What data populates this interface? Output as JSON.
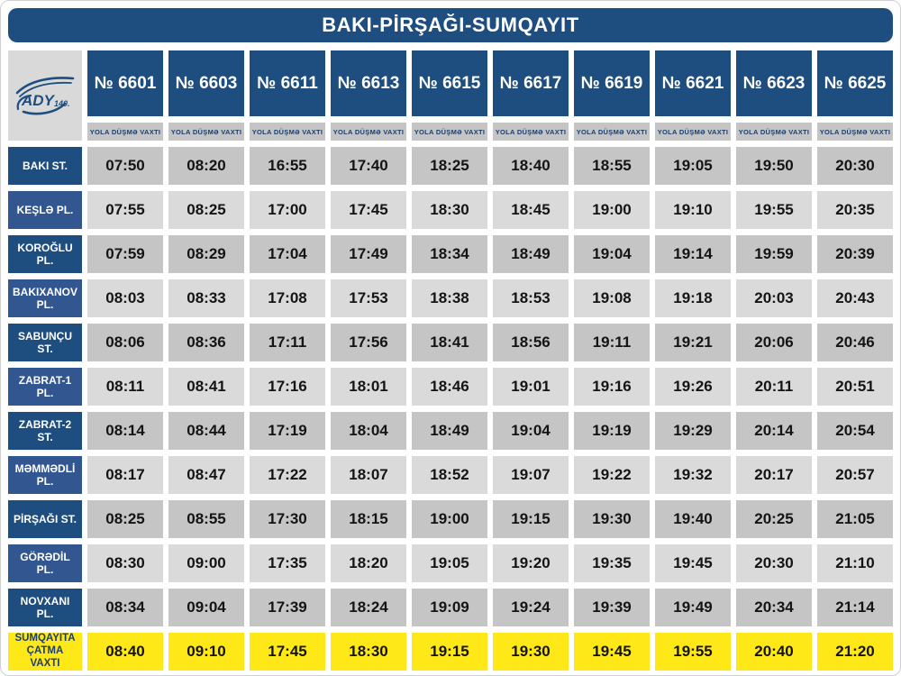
{
  "title": "BAKI-PİRŞAĞI-SUMQAYIT",
  "logo": {
    "name": "ADY",
    "anniversary": "140."
  },
  "departure_label": "YOLA DÜŞMƏ VAXTI",
  "trains": [
    "№ 6601",
    "№ 6603",
    "№ 6611",
    "№ 6613",
    "№ 6615",
    "№ 6617",
    "№ 6619",
    "№ 6621",
    "№ 6623",
    "№ 6625"
  ],
  "rows": [
    {
      "station": "BAKI ST.",
      "highlight": false,
      "times": [
        "07:50",
        "08:20",
        "16:55",
        "17:40",
        "18:25",
        "18:40",
        "18:55",
        "19:05",
        "19:50",
        "20:30"
      ]
    },
    {
      "station": "KEŞLƏ PL.",
      "highlight": false,
      "times": [
        "07:55",
        "08:25",
        "17:00",
        "17:45",
        "18:30",
        "18:45",
        "19:00",
        "19:10",
        "19:55",
        "20:35"
      ]
    },
    {
      "station": "KOROĞLU PL.",
      "highlight": false,
      "times": [
        "07:59",
        "08:29",
        "17:04",
        "17:49",
        "18:34",
        "18:49",
        "19:04",
        "19:14",
        "19:59",
        "20:39"
      ]
    },
    {
      "station": "BAKIXANOV PL.",
      "highlight": false,
      "times": [
        "08:03",
        "08:33",
        "17:08",
        "17:53",
        "18:38",
        "18:53",
        "19:08",
        "19:18",
        "20:03",
        "20:43"
      ]
    },
    {
      "station": "SABUNÇU ST.",
      "highlight": false,
      "times": [
        "08:06",
        "08:36",
        "17:11",
        "17:56",
        "18:41",
        "18:56",
        "19:11",
        "19:21",
        "20:06",
        "20:46"
      ]
    },
    {
      "station": "ZABRAT-1 PL.",
      "highlight": false,
      "times": [
        "08:11",
        "08:41",
        "17:16",
        "18:01",
        "18:46",
        "19:01",
        "19:16",
        "19:26",
        "20:11",
        "20:51"
      ]
    },
    {
      "station": "ZABRAT-2 ST.",
      "highlight": false,
      "times": [
        "08:14",
        "08:44",
        "17:19",
        "18:04",
        "18:49",
        "19:04",
        "19:19",
        "19:29",
        "20:14",
        "20:54"
      ]
    },
    {
      "station": "MƏMMƏDLİ PL.",
      "highlight": false,
      "times": [
        "08:17",
        "08:47",
        "17:22",
        "18:07",
        "18:52",
        "19:07",
        "19:22",
        "19:32",
        "20:17",
        "20:57"
      ]
    },
    {
      "station": "PİRŞAĞI ST.",
      "highlight": false,
      "times": [
        "08:25",
        "08:55",
        "17:30",
        "18:15",
        "19:00",
        "19:15",
        "19:30",
        "19:40",
        "20:25",
        "21:05"
      ]
    },
    {
      "station": "GÖRƏDİL PL.",
      "highlight": false,
      "times": [
        "08:30",
        "09:00",
        "17:35",
        "18:20",
        "19:05",
        "19:20",
        "19:35",
        "19:45",
        "20:30",
        "21:10"
      ]
    },
    {
      "station": "NOVXANI PL.",
      "highlight": false,
      "times": [
        "08:34",
        "09:04",
        "17:39",
        "18:24",
        "19:09",
        "19:24",
        "19:39",
        "19:49",
        "20:34",
        "21:14"
      ]
    },
    {
      "station": "SUMQAYITA ÇATMA VAXTI",
      "highlight": true,
      "times": [
        "08:40",
        "09:10",
        "17:45",
        "18:30",
        "19:15",
        "19:30",
        "19:45",
        "19:55",
        "20:40",
        "21:20"
      ]
    }
  ],
  "colors": {
    "blue": "#1e4d80",
    "blue_alt": "#325690",
    "gray_dark": "#c5c5c5",
    "gray_light": "#dadada",
    "logo_gray": "#d9d9d9",
    "yellow": "#ffe817",
    "navy_text": "#1c3e6e",
    "time_text": "#141414"
  }
}
